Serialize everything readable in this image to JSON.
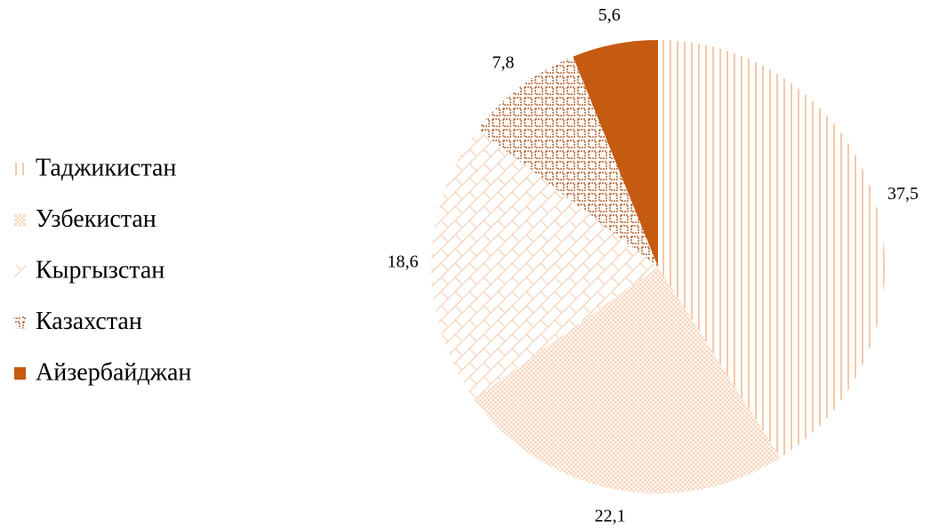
{
  "chart_data": {
    "type": "pie",
    "categories": [
      "Таджикистан",
      "Узбекистан",
      "Кыргызстан",
      "Казахстан",
      "Айзербайджан"
    ],
    "values": [
      37.5,
      22.1,
      18.6,
      7.8,
      5.6
    ],
    "value_labels": [
      "37,5",
      "22,1",
      "18,6",
      "7,8",
      "5,6"
    ],
    "colors": [
      "#f4b183",
      "#f8cbad",
      "#f8cbad",
      "#b4612e",
      "#c55a11"
    ],
    "legend": "left"
  }
}
